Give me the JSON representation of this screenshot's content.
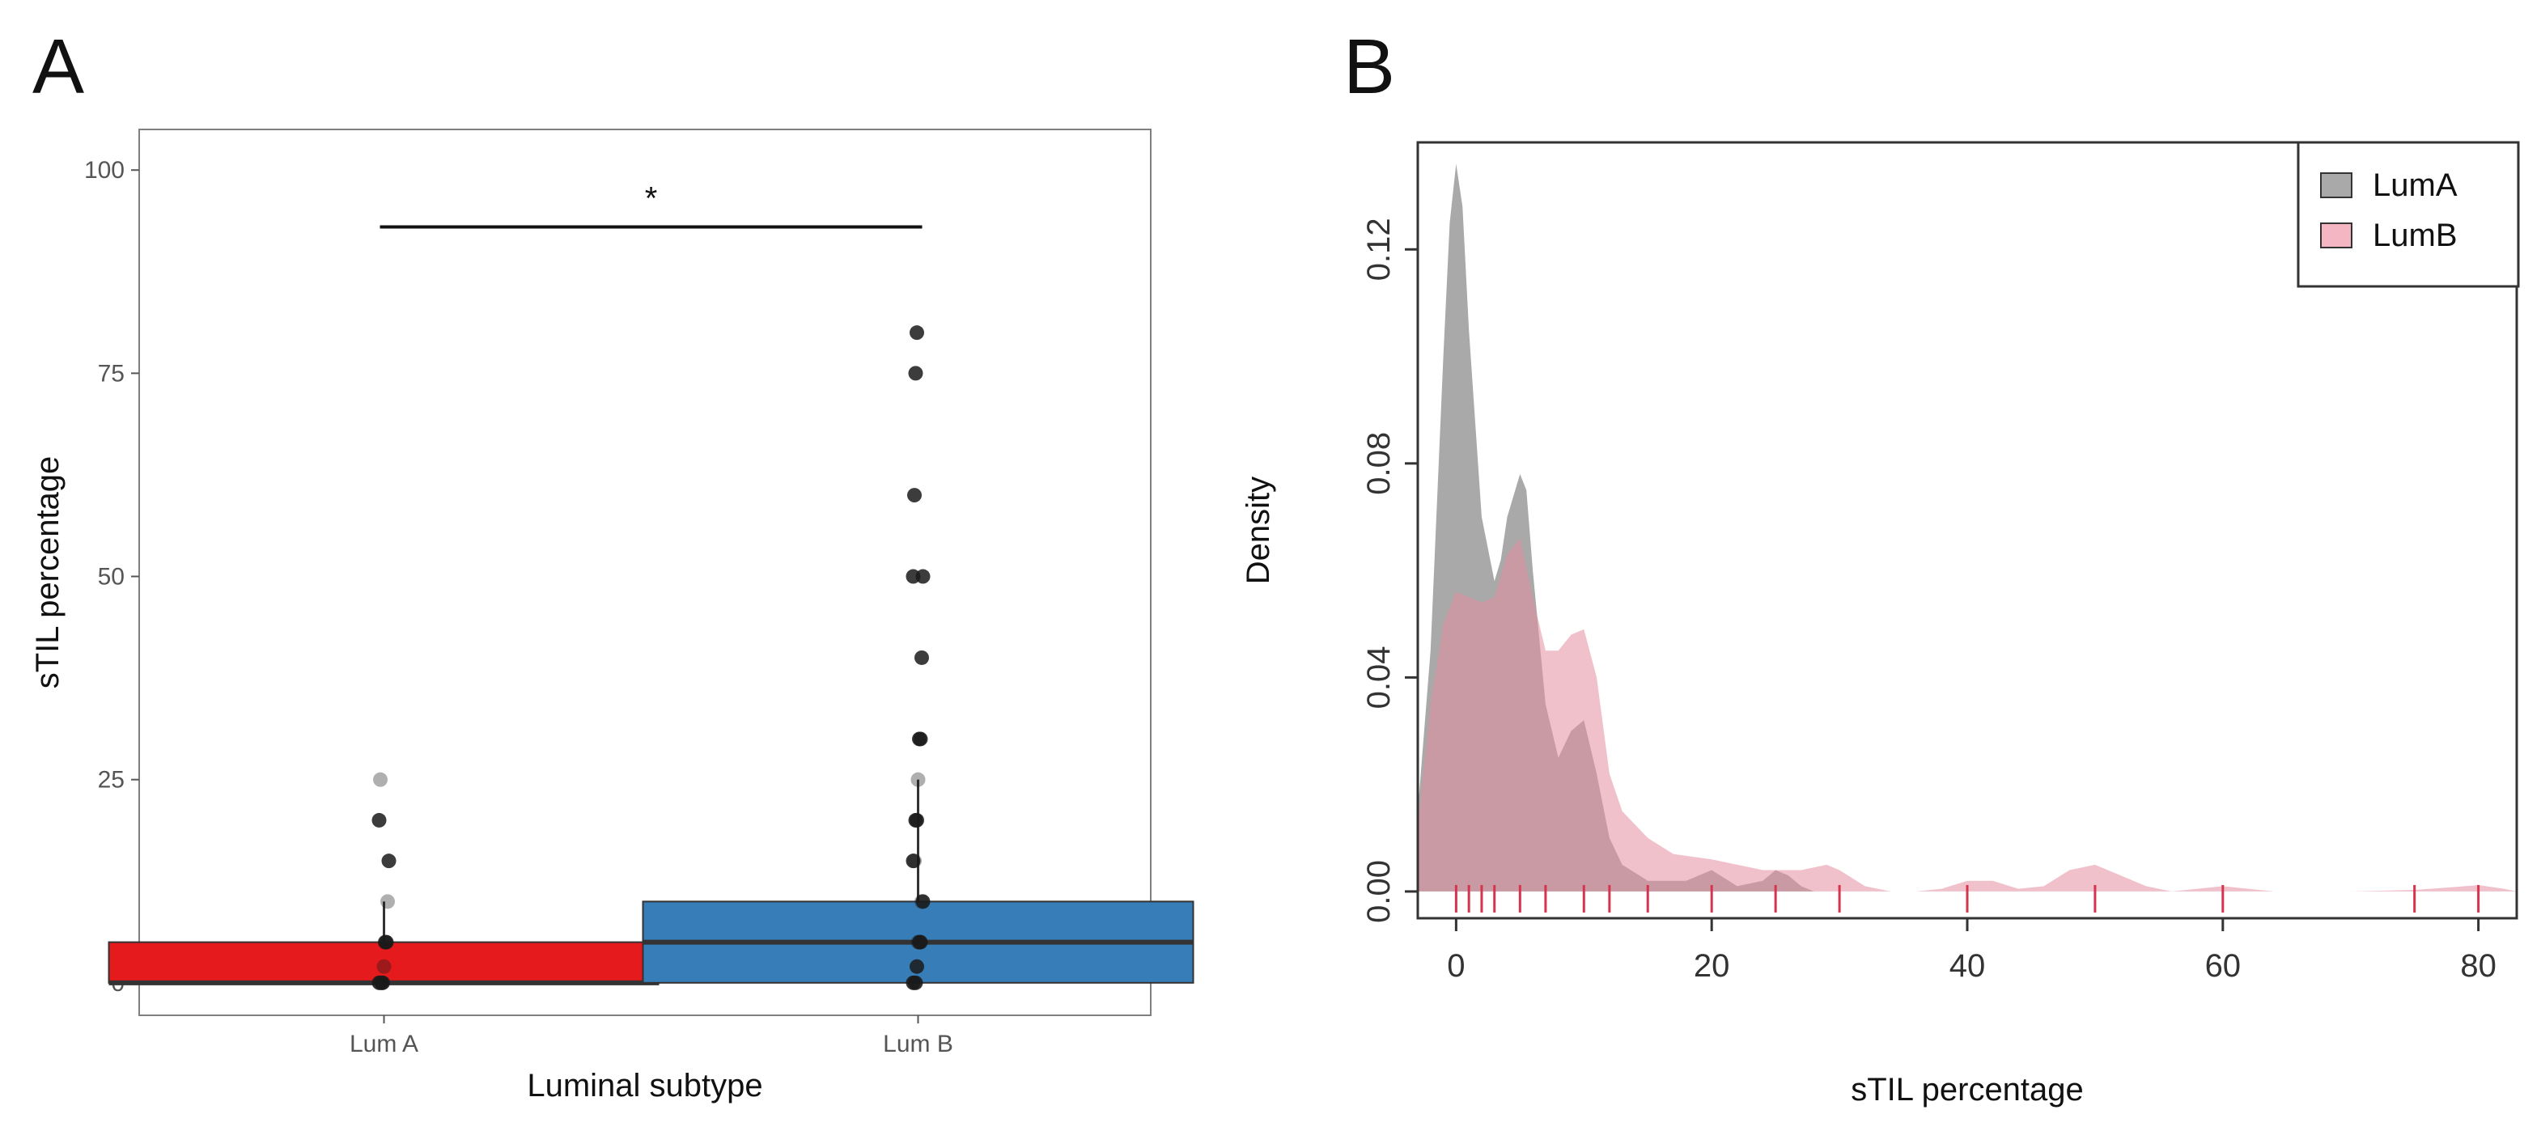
{
  "panels": {
    "a": {
      "label": "A"
    },
    "b": {
      "label": "B"
    }
  },
  "chart_data": [
    {
      "type": "box",
      "panel": "A",
      "title": "",
      "xlabel": "Luminal subtype",
      "ylabel": "sTIL percentage",
      "ylim": [
        -4,
        105
      ],
      "yticks": [
        0,
        25,
        50,
        75,
        100
      ],
      "ytick_labels": [
        "0",
        "25",
        "50",
        "75",
        "100"
      ],
      "categories": [
        "Lum A",
        "Lum B"
      ],
      "colors": [
        "#e41a1c",
        "#377eb8"
      ],
      "boxes": [
        {
          "name": "Lum A",
          "min": 0,
          "q1": 0,
          "median": 0,
          "q3": 5,
          "whisker_high": 10,
          "color": "#e41a1c"
        },
        {
          "name": "Lum B",
          "min": 0,
          "q1": 0,
          "median": 5,
          "q3": 10,
          "whisker_high": 25,
          "color": "#377eb8"
        }
      ],
      "points": [
        {
          "group": "Lum A",
          "values": [
            0,
            0,
            0,
            0,
            2,
            5,
            5,
            10,
            15,
            20,
            25
          ]
        },
        {
          "group": "Lum B",
          "values": [
            0,
            0,
            0,
            2,
            5,
            5,
            5,
            10,
            10,
            15,
            15,
            20,
            20,
            25,
            30,
            30,
            40,
            50,
            50,
            60,
            75,
            80
          ]
        }
      ],
      "significance": {
        "label": "*",
        "y": 93,
        "from": "Lum A",
        "to": "Lum B"
      }
    },
    {
      "type": "area",
      "panel": "B",
      "title": "",
      "xlabel": "sTIL percentage",
      "ylabel": "Density",
      "xlim": [
        -3,
        83
      ],
      "ylim": [
        -0.005,
        0.14
      ],
      "xticks": [
        0,
        20,
        40,
        60,
        80
      ],
      "xtick_labels": [
        "0",
        "20",
        "40",
        "60",
        "80"
      ],
      "yticks": [
        0,
        0.04,
        0.08,
        0.12
      ],
      "ytick_labels": [
        "0.00",
        "0.04",
        "0.08",
        "0.12"
      ],
      "legend": {
        "position": "top-right",
        "entries": [
          "LumA",
          "LumB"
        ]
      },
      "series": [
        {
          "name": "LumA",
          "color": "#a9a9a9",
          "x": [
            -3,
            -2,
            -1,
            -0.5,
            0,
            0.5,
            1,
            2,
            3,
            3.5,
            4,
            5,
            5.5,
            6,
            7,
            8,
            9,
            10,
            11,
            12,
            13,
            15,
            18,
            20,
            22,
            24,
            25,
            26,
            27,
            28
          ],
          "y": [
            0.015,
            0.045,
            0.1,
            0.125,
            0.136,
            0.128,
            0.105,
            0.07,
            0.058,
            0.062,
            0.07,
            0.078,
            0.075,
            0.06,
            0.035,
            0.025,
            0.03,
            0.032,
            0.022,
            0.01,
            0.005,
            0.002,
            0.002,
            0.004,
            0.001,
            0.002,
            0.004,
            0.003,
            0.001,
            0
          ]
        },
        {
          "name": "LumB",
          "color": "#f4b6c2",
          "x": [
            -3,
            -2,
            -1,
            0,
            1,
            2,
            3,
            4,
            5,
            6,
            7,
            8,
            9,
            10,
            11,
            12,
            13,
            15,
            17,
            20,
            22,
            24,
            25,
            27,
            29,
            30,
            32,
            34,
            36,
            38,
            40,
            42,
            44,
            46,
            48,
            50,
            52,
            54,
            56,
            58,
            60,
            62,
            64,
            70,
            75,
            78,
            80,
            82,
            83
          ],
          "y": [
            0.012,
            0.035,
            0.05,
            0.056,
            0.055,
            0.054,
            0.055,
            0.063,
            0.066,
            0.055,
            0.045,
            0.045,
            0.048,
            0.049,
            0.04,
            0.022,
            0.015,
            0.01,
            0.007,
            0.006,
            0.005,
            0.004,
            0.004,
            0.004,
            0.005,
            0.004,
            0.001,
            0,
            0,
            0.0005,
            0.002,
            0.002,
            0.0005,
            0.001,
            0.004,
            0.005,
            0.003,
            0.001,
            0,
            0.0005,
            0.001,
            0.0005,
            0,
            0,
            0.0003,
            0.0008,
            0.0012,
            0.0005,
            0
          ]
        }
      ],
      "rug": [
        0,
        1,
        2,
        3,
        5,
        7,
        10,
        12,
        15,
        20,
        25,
        30,
        40,
        50,
        60,
        75,
        80
      ],
      "rug_color": "#d6334e"
    }
  ]
}
